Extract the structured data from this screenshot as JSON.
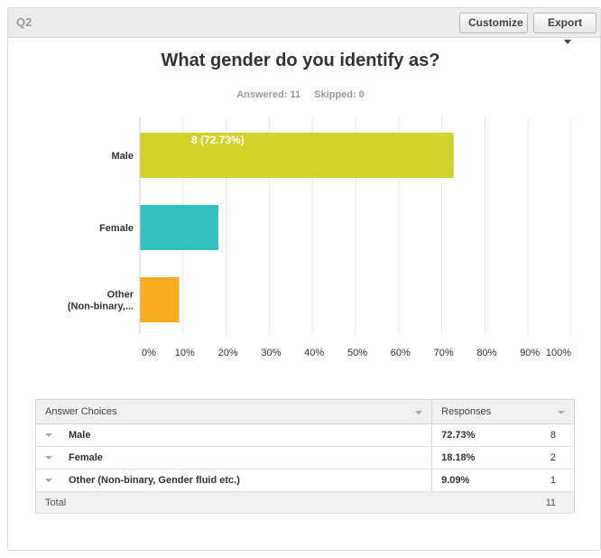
{
  "question": {
    "label": "Q2",
    "title": "What gender do you identify as?",
    "answered": "Answered: 11",
    "skipped": "Skipped: 0"
  },
  "toolbar": {
    "customize_label": "Customize",
    "export_label": "Export"
  },
  "colors": {
    "male": "#d0d42a",
    "female": "#35bfbf",
    "other": "#f5ad22",
    "grid": "#e6e6e6"
  },
  "chart_data": {
    "type": "bar",
    "orientation": "horizontal",
    "categories": [
      {
        "label": [
          "Male"
        ],
        "color": "#d0d42a"
      },
      {
        "label": [
          "Female"
        ],
        "color": "#35bfbf"
      },
      {
        "label": [
          "Other",
          "(Non-binary,..."
        ],
        "color": "#f5ad22"
      }
    ],
    "values": [
      72.73,
      18.18,
      9.09
    ],
    "data_labels": [
      "8 (72.73%)",
      "",
      ""
    ],
    "x_ticks": [
      "0%",
      "10%",
      "20%",
      "30%",
      "40%",
      "50%",
      "60%",
      "70%",
      "80%",
      "90%",
      "100%"
    ],
    "xlim": [
      0,
      100
    ],
    "grid": true
  },
  "table": {
    "headers": {
      "choices": "Answer Choices",
      "responses": "Responses"
    },
    "rows": [
      {
        "choice": "Male",
        "percent": "72.73%",
        "count": "8"
      },
      {
        "choice": "Female",
        "percent": "18.18%",
        "count": "2"
      },
      {
        "choice": "Other (Non-binary, Gender fluid etc.)",
        "percent": "9.09%",
        "count": "1"
      }
    ],
    "total": {
      "label": "Total",
      "count": "11"
    }
  }
}
